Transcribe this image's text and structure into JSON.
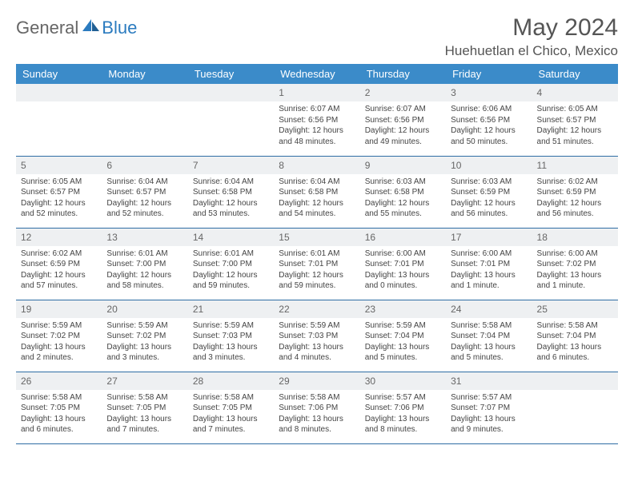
{
  "brand": {
    "part1": "General",
    "part2": "Blue"
  },
  "title": "May 2024",
  "location": "Huehuetlan el Chico, Mexico",
  "colors": {
    "header_bg": "#3b8bc9",
    "header_text": "#ffffff",
    "daynum_bg": "#eef0f2",
    "border": "#2e6da4",
    "brand_blue": "#2b7bbf",
    "brand_gray": "#666666",
    "text": "#444444"
  },
  "weekdays": [
    "Sunday",
    "Monday",
    "Tuesday",
    "Wednesday",
    "Thursday",
    "Friday",
    "Saturday"
  ],
  "weeks": [
    [
      null,
      null,
      null,
      {
        "n": "1",
        "sr": "Sunrise: 6:07 AM",
        "ss": "Sunset: 6:56 PM",
        "dl": "Daylight: 12 hours and 48 minutes."
      },
      {
        "n": "2",
        "sr": "Sunrise: 6:07 AM",
        "ss": "Sunset: 6:56 PM",
        "dl": "Daylight: 12 hours and 49 minutes."
      },
      {
        "n": "3",
        "sr": "Sunrise: 6:06 AM",
        "ss": "Sunset: 6:56 PM",
        "dl": "Daylight: 12 hours and 50 minutes."
      },
      {
        "n": "4",
        "sr": "Sunrise: 6:05 AM",
        "ss": "Sunset: 6:57 PM",
        "dl": "Daylight: 12 hours and 51 minutes."
      }
    ],
    [
      {
        "n": "5",
        "sr": "Sunrise: 6:05 AM",
        "ss": "Sunset: 6:57 PM",
        "dl": "Daylight: 12 hours and 52 minutes."
      },
      {
        "n": "6",
        "sr": "Sunrise: 6:04 AM",
        "ss": "Sunset: 6:57 PM",
        "dl": "Daylight: 12 hours and 52 minutes."
      },
      {
        "n": "7",
        "sr": "Sunrise: 6:04 AM",
        "ss": "Sunset: 6:58 PM",
        "dl": "Daylight: 12 hours and 53 minutes."
      },
      {
        "n": "8",
        "sr": "Sunrise: 6:04 AM",
        "ss": "Sunset: 6:58 PM",
        "dl": "Daylight: 12 hours and 54 minutes."
      },
      {
        "n": "9",
        "sr": "Sunrise: 6:03 AM",
        "ss": "Sunset: 6:58 PM",
        "dl": "Daylight: 12 hours and 55 minutes."
      },
      {
        "n": "10",
        "sr": "Sunrise: 6:03 AM",
        "ss": "Sunset: 6:59 PM",
        "dl": "Daylight: 12 hours and 56 minutes."
      },
      {
        "n": "11",
        "sr": "Sunrise: 6:02 AM",
        "ss": "Sunset: 6:59 PM",
        "dl": "Daylight: 12 hours and 56 minutes."
      }
    ],
    [
      {
        "n": "12",
        "sr": "Sunrise: 6:02 AM",
        "ss": "Sunset: 6:59 PM",
        "dl": "Daylight: 12 hours and 57 minutes."
      },
      {
        "n": "13",
        "sr": "Sunrise: 6:01 AM",
        "ss": "Sunset: 7:00 PM",
        "dl": "Daylight: 12 hours and 58 minutes."
      },
      {
        "n": "14",
        "sr": "Sunrise: 6:01 AM",
        "ss": "Sunset: 7:00 PM",
        "dl": "Daylight: 12 hours and 59 minutes."
      },
      {
        "n": "15",
        "sr": "Sunrise: 6:01 AM",
        "ss": "Sunset: 7:01 PM",
        "dl": "Daylight: 12 hours and 59 minutes."
      },
      {
        "n": "16",
        "sr": "Sunrise: 6:00 AM",
        "ss": "Sunset: 7:01 PM",
        "dl": "Daylight: 13 hours and 0 minutes."
      },
      {
        "n": "17",
        "sr": "Sunrise: 6:00 AM",
        "ss": "Sunset: 7:01 PM",
        "dl": "Daylight: 13 hours and 1 minute."
      },
      {
        "n": "18",
        "sr": "Sunrise: 6:00 AM",
        "ss": "Sunset: 7:02 PM",
        "dl": "Daylight: 13 hours and 1 minute."
      }
    ],
    [
      {
        "n": "19",
        "sr": "Sunrise: 5:59 AM",
        "ss": "Sunset: 7:02 PM",
        "dl": "Daylight: 13 hours and 2 minutes."
      },
      {
        "n": "20",
        "sr": "Sunrise: 5:59 AM",
        "ss": "Sunset: 7:02 PM",
        "dl": "Daylight: 13 hours and 3 minutes."
      },
      {
        "n": "21",
        "sr": "Sunrise: 5:59 AM",
        "ss": "Sunset: 7:03 PM",
        "dl": "Daylight: 13 hours and 3 minutes."
      },
      {
        "n": "22",
        "sr": "Sunrise: 5:59 AM",
        "ss": "Sunset: 7:03 PM",
        "dl": "Daylight: 13 hours and 4 minutes."
      },
      {
        "n": "23",
        "sr": "Sunrise: 5:59 AM",
        "ss": "Sunset: 7:04 PM",
        "dl": "Daylight: 13 hours and 5 minutes."
      },
      {
        "n": "24",
        "sr": "Sunrise: 5:58 AM",
        "ss": "Sunset: 7:04 PM",
        "dl": "Daylight: 13 hours and 5 minutes."
      },
      {
        "n": "25",
        "sr": "Sunrise: 5:58 AM",
        "ss": "Sunset: 7:04 PM",
        "dl": "Daylight: 13 hours and 6 minutes."
      }
    ],
    [
      {
        "n": "26",
        "sr": "Sunrise: 5:58 AM",
        "ss": "Sunset: 7:05 PM",
        "dl": "Daylight: 13 hours and 6 minutes."
      },
      {
        "n": "27",
        "sr": "Sunrise: 5:58 AM",
        "ss": "Sunset: 7:05 PM",
        "dl": "Daylight: 13 hours and 7 minutes."
      },
      {
        "n": "28",
        "sr": "Sunrise: 5:58 AM",
        "ss": "Sunset: 7:05 PM",
        "dl": "Daylight: 13 hours and 7 minutes."
      },
      {
        "n": "29",
        "sr": "Sunrise: 5:58 AM",
        "ss": "Sunset: 7:06 PM",
        "dl": "Daylight: 13 hours and 8 minutes."
      },
      {
        "n": "30",
        "sr": "Sunrise: 5:57 AM",
        "ss": "Sunset: 7:06 PM",
        "dl": "Daylight: 13 hours and 8 minutes."
      },
      {
        "n": "31",
        "sr": "Sunrise: 5:57 AM",
        "ss": "Sunset: 7:07 PM",
        "dl": "Daylight: 13 hours and 9 minutes."
      },
      null
    ]
  ]
}
